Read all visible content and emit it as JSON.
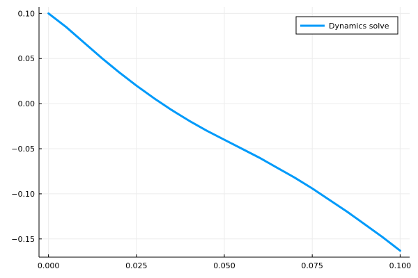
{
  "chart_data": {
    "type": "line",
    "title": "",
    "xlabel": "",
    "ylabel": "",
    "xlim": [
      -0.0027,
      0.1027
    ],
    "ylim": [
      -0.1702,
      0.1072
    ],
    "grid": true,
    "legend_position": "top-right",
    "xticks": [
      {
        "value": 0.0,
        "label": "0.000"
      },
      {
        "value": 0.025,
        "label": "0.025"
      },
      {
        "value": 0.05,
        "label": "0.050"
      },
      {
        "value": 0.075,
        "label": "0.075"
      },
      {
        "value": 0.1,
        "label": "0.100"
      }
    ],
    "yticks": [
      {
        "value": 0.1,
        "label": "0.10"
      },
      {
        "value": 0.05,
        "label": "0.05"
      },
      {
        "value": 0.0,
        "label": "0.00"
      },
      {
        "value": -0.05,
        "label": "−0.05"
      },
      {
        "value": -0.1,
        "label": "−0.10"
      },
      {
        "value": -0.15,
        "label": "−0.15"
      }
    ],
    "series": [
      {
        "name": "Dynamics solve",
        "color": "#009AFA",
        "x": [
          0.0,
          0.005,
          0.01,
          0.015,
          0.02,
          0.025,
          0.03,
          0.035,
          0.04,
          0.045,
          0.05,
          0.055,
          0.06,
          0.065,
          0.07,
          0.075,
          0.08,
          0.085,
          0.09,
          0.095,
          0.1
        ],
        "y": [
          0.1,
          0.085,
          0.068,
          0.051,
          0.035,
          0.02,
          0.006,
          -0.007,
          -0.019,
          -0.03,
          -0.04,
          -0.05,
          -0.06,
          -0.071,
          -0.082,
          -0.094,
          -0.107,
          -0.12,
          -0.134,
          -0.148,
          -0.163
        ]
      }
    ]
  }
}
